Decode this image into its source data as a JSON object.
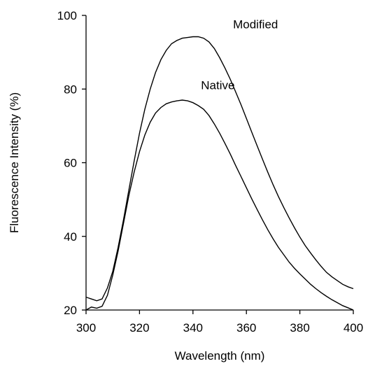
{
  "chart_data": {
    "type": "line",
    "title": "",
    "xlabel": "Wavelength (nm)",
    "ylabel": "Fluorescence Intensity (%)",
    "xlim": [
      300,
      400
    ],
    "ylim": [
      20,
      100
    ],
    "xticks": [
      300,
      320,
      340,
      360,
      380,
      400
    ],
    "yticks": [
      20,
      40,
      60,
      80,
      100
    ],
    "grid": false,
    "legend": "none",
    "series": [
      {
        "name": "Modified",
        "x": [
          300,
          302,
          304,
          306,
          308,
          310,
          312,
          314,
          316,
          318,
          320,
          322,
          324,
          326,
          328,
          330,
          332,
          334,
          336,
          338,
          340,
          342,
          344,
          346,
          348,
          350,
          352,
          354,
          356,
          358,
          360,
          362,
          364,
          366,
          368,
          370,
          372,
          374,
          376,
          378,
          380,
          382,
          384,
          386,
          388,
          390,
          392,
          394,
          396,
          398,
          400
        ],
        "y": [
          23.5,
          23.0,
          22.5,
          23.0,
          26.0,
          30.5,
          37.0,
          44.5,
          52.5,
          60.5,
          68.0,
          74.5,
          80.0,
          84.5,
          88.0,
          90.5,
          92.3,
          93.2,
          93.8,
          94.0,
          94.2,
          94.2,
          93.8,
          92.8,
          91.0,
          88.5,
          85.7,
          82.6,
          79.2,
          75.7,
          72.0,
          68.3,
          64.6,
          61.0,
          57.4,
          54.0,
          50.8,
          47.8,
          45.0,
          42.3,
          39.8,
          37.5,
          35.5,
          33.6,
          31.8,
          30.2,
          29.0,
          28.0,
          27.0,
          26.3,
          25.8
        ]
      },
      {
        "name": "Native",
        "x": [
          300,
          302,
          304,
          306,
          308,
          310,
          312,
          314,
          316,
          318,
          320,
          322,
          324,
          326,
          328,
          330,
          332,
          334,
          336,
          338,
          340,
          342,
          344,
          346,
          348,
          350,
          352,
          354,
          356,
          358,
          360,
          362,
          364,
          366,
          368,
          370,
          372,
          374,
          376,
          378,
          380,
          382,
          384,
          386,
          388,
          390,
          392,
          394,
          396,
          398,
          400
        ],
        "y": [
          20.0,
          20.8,
          20.5,
          21.0,
          24.0,
          29.5,
          36.0,
          43.5,
          51.0,
          57.5,
          63.0,
          67.5,
          71.0,
          73.5,
          75.0,
          76.0,
          76.5,
          76.8,
          77.0,
          76.8,
          76.3,
          75.5,
          74.5,
          72.8,
          70.5,
          68.0,
          65.2,
          62.3,
          59.2,
          56.2,
          53.2,
          50.2,
          47.3,
          44.5,
          41.8,
          39.3,
          37.0,
          35.0,
          33.0,
          31.3,
          29.8,
          28.4,
          27.0,
          25.8,
          24.7,
          23.7,
          22.8,
          22.0,
          21.2,
          20.6,
          20.0
        ]
      }
    ],
    "annotations": [
      {
        "text": "Modified",
        "x": 355,
        "y": 96.5
      },
      {
        "text": "Native",
        "x": 343,
        "y": 80.0
      }
    ]
  }
}
